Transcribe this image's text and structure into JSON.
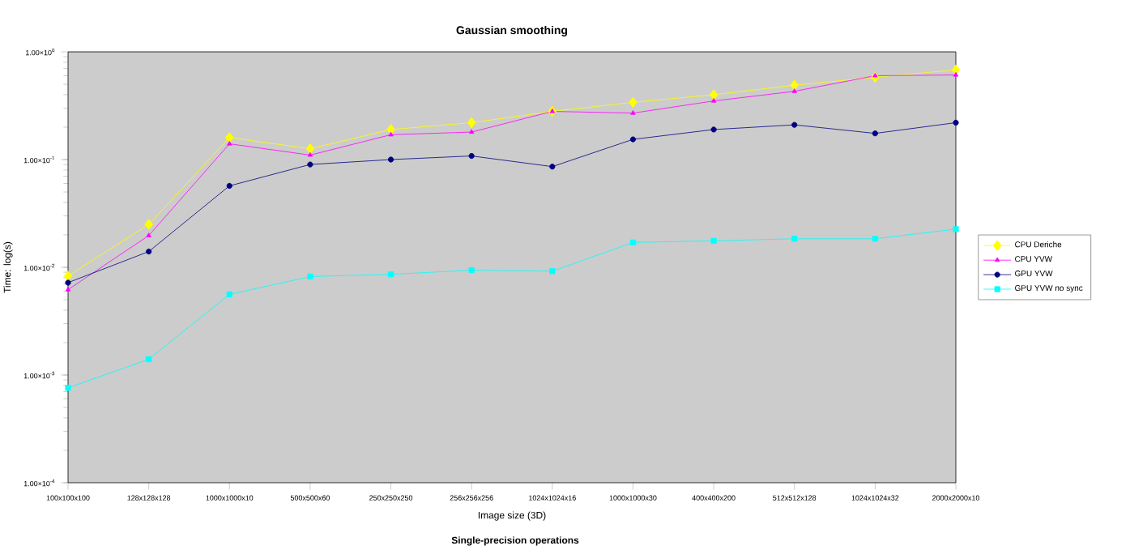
{
  "chart_data": {
    "type": "line",
    "title": "Gaussian smoothing",
    "xlabel": "Image size (3D)",
    "ylabel": "Time: log(s)",
    "annotations": [
      "Single-precision operations"
    ],
    "categories": [
      "100x100x100",
      "128x128x128",
      "1000x1000x10",
      "500x500x60",
      "250x250x250",
      "256x256x256",
      "1024x1024x16",
      "1000x1000x30",
      "400x400x200",
      "512x512x128",
      "1024x1024x32",
      "2000x2000x10"
    ],
    "series": [
      {
        "name": "CPU Deriche",
        "color": "#ffff00",
        "marker": "diamond",
        "values": [
          0.0083,
          0.025,
          0.16,
          0.126,
          0.19,
          0.22,
          0.28,
          0.34,
          0.4,
          0.49,
          0.58,
          0.68
        ]
      },
      {
        "name": "CPU YVW",
        "color": "#ff00ff",
        "marker": "triangle",
        "values": [
          0.0062,
          0.0197,
          0.14,
          0.11,
          0.17,
          0.18,
          0.28,
          0.27,
          0.35,
          0.43,
          0.6,
          0.61
        ]
      },
      {
        "name": "GPU YVW",
        "color": "#000080",
        "marker": "circle",
        "values": [
          0.0072,
          0.014,
          0.057,
          0.09,
          0.1,
          0.108,
          0.086,
          0.154,
          0.19,
          0.21,
          0.175,
          0.22
        ]
      },
      {
        "name": "GPU YVW no sync",
        "color": "#00ffff",
        "marker": "square",
        "values": [
          0.00076,
          0.0014,
          0.0056,
          0.0082,
          0.0086,
          0.0094,
          0.0092,
          0.017,
          0.0176,
          0.0184,
          0.0184,
          0.0226
        ]
      }
    ],
    "log": "y",
    "ylim": [
      0.0001,
      1
    ],
    "yticks": [
      {
        "value": 0.0001,
        "label": "1.00×10$^{-4}$"
      },
      {
        "value": 0.001,
        "label": "1.00×10$^{-3}$"
      },
      {
        "value": 0.01,
        "label": "1.00×10$^{-2}$"
      },
      {
        "value": 0.1,
        "label": "1.00×10$^{-1}$"
      },
      {
        "value": 1,
        "label": "1.00×10$^{0}$"
      }
    ],
    "grid": false,
    "legend": "right",
    "line_style": "solid"
  }
}
